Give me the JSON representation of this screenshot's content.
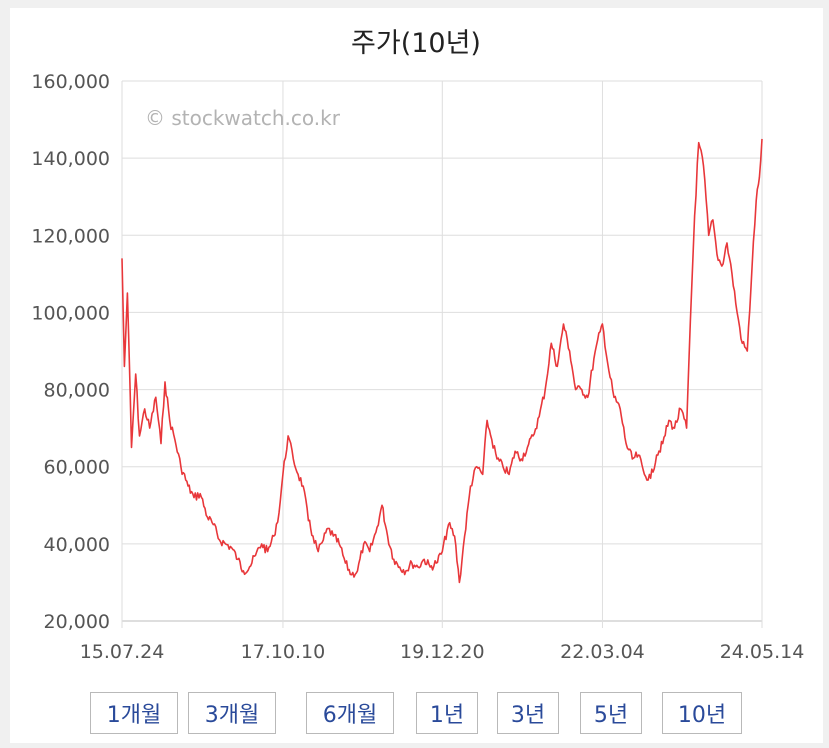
{
  "chart_data": {
    "type": "line",
    "title": "주가(10년)",
    "watermark": "© stockwatch.co.kr",
    "line_color": "#e8373a",
    "grid": true,
    "ylim": [
      20000,
      160000
    ],
    "yticks": [
      20000,
      40000,
      60000,
      80000,
      100000,
      120000,
      140000,
      160000
    ],
    "ytick_labels": [
      "20,000",
      "40,000",
      "60,000",
      "80,000",
      "100,000",
      "120,000",
      "140,000",
      "160,000"
    ],
    "xlim": [
      "2015-07-24",
      "2024-05-14"
    ],
    "xtick_labels": [
      "15.07.24",
      "17.10.10",
      "19.12.20",
      "22.03.04",
      "24.05.14"
    ],
    "xticks": [
      "2015-07-24",
      "2017-10-10",
      "2019-12-20",
      "2022-03-04",
      "2024-05-14"
    ],
    "series": [
      {
        "x": [
          "2015-07-24",
          "2015-08-05",
          "2015-08-20",
          "2015-09-10",
          "2015-10-01",
          "2015-10-20",
          "2015-11-15",
          "2015-12-10",
          "2016-01-10",
          "2016-02-05",
          "2016-02-25",
          "2016-03-20",
          "2016-04-15",
          "2016-05-15",
          "2016-06-20",
          "2016-07-20",
          "2016-08-20",
          "2016-09-25",
          "2016-10-25",
          "2016-11-25",
          "2016-12-25",
          "2017-01-25",
          "2017-02-25",
          "2017-03-25",
          "2017-04-25",
          "2017-05-25",
          "2017-06-25",
          "2017-07-25",
          "2017-08-25",
          "2017-09-20",
          "2017-10-10",
          "2017-11-05",
          "2017-12-01",
          "2017-12-25",
          "2018-01-20",
          "2018-02-15",
          "2018-03-10",
          "2018-04-05",
          "2018-05-01",
          "2018-05-25",
          "2018-06-20",
          "2018-07-20",
          "2018-08-20",
          "2018-09-20",
          "2018-10-20",
          "2018-11-20",
          "2018-12-20",
          "2019-01-20",
          "2019-02-20",
          "2019-03-20",
          "2019-04-20",
          "2019-05-20",
          "2019-06-20",
          "2019-07-20",
          "2019-08-20",
          "2019-09-20",
          "2019-10-20",
          "2019-11-20",
          "2019-12-20",
          "2020-01-20",
          "2020-02-20",
          "2020-03-15",
          "2020-04-10",
          "2020-05-10",
          "2020-06-10",
          "2020-07-10",
          "2020-08-01",
          "2020-08-25",
          "2020-09-20",
          "2020-10-20",
          "2020-11-20",
          "2020-12-20",
          "2021-01-20",
          "2021-02-20",
          "2021-03-20",
          "2021-04-20",
          "2021-05-20",
          "2021-06-20",
          "2021-07-20",
          "2021-08-20",
          "2021-09-20",
          "2021-10-20",
          "2021-11-20",
          "2021-12-20",
          "2022-01-20",
          "2022-02-20",
          "2022-03-04",
          "2022-04-05",
          "2022-05-01",
          "2022-06-01",
          "2022-07-01",
          "2022-08-01",
          "2022-09-01",
          "2022-10-01",
          "2022-11-01",
          "2022-12-01",
          "2023-01-01",
          "2023-02-01",
          "2023-03-01",
          "2023-04-01",
          "2023-05-01",
          "2023-05-20",
          "2023-06-10",
          "2023-07-01",
          "2023-07-25",
          "2023-08-20",
          "2023-09-10",
          "2023-10-01",
          "2023-10-25",
          "2023-11-20",
          "2023-12-15",
          "2024-01-10",
          "2024-02-05",
          "2024-03-01",
          "2024-03-25",
          "2024-04-15",
          "2024-05-01",
          "2024-05-14"
        ],
        "y": [
          114000,
          86000,
          105000,
          65000,
          84000,
          68000,
          75000,
          70000,
          78000,
          66000,
          82000,
          72000,
          67000,
          60000,
          55000,
          52000,
          53000,
          47000,
          45000,
          41000,
          40000,
          39000,
          36000,
          33000,
          34000,
          37000,
          40000,
          38000,
          42000,
          48000,
          58000,
          68000,
          62000,
          58000,
          55000,
          46000,
          42000,
          38000,
          41000,
          44000,
          42000,
          40000,
          35000,
          32000,
          33000,
          40000,
          38000,
          43000,
          50000,
          42000,
          36000,
          34000,
          33000,
          35000,
          34000,
          36000,
          34000,
          35000,
          38000,
          45000,
          42000,
          30000,
          42000,
          55000,
          60000,
          58000,
          72000,
          67000,
          62000,
          60000,
          58000,
          64000,
          62000,
          65000,
          68000,
          73000,
          80000,
          92000,
          86000,
          97000,
          90000,
          80000,
          80000,
          78000,
          88000,
          95000,
          97000,
          85000,
          78000,
          75000,
          66000,
          62000,
          63000,
          58000,
          57000,
          63000,
          66000,
          72000,
          70000,
          75000,
          70000,
          98000,
          125000,
          144000,
          138000,
          120000,
          124000,
          115000,
          112000,
          118000,
          110000,
          100000,
          92000,
          90000,
          112000,
          129000,
          135000,
          145000
        ]
      }
    ]
  },
  "tabs": [
    {
      "label": "1개월"
    },
    {
      "label": "3개월"
    },
    {
      "label": "6개월"
    },
    {
      "label": "1년"
    },
    {
      "label": "3년"
    },
    {
      "label": "5년"
    },
    {
      "label": "10년"
    }
  ]
}
